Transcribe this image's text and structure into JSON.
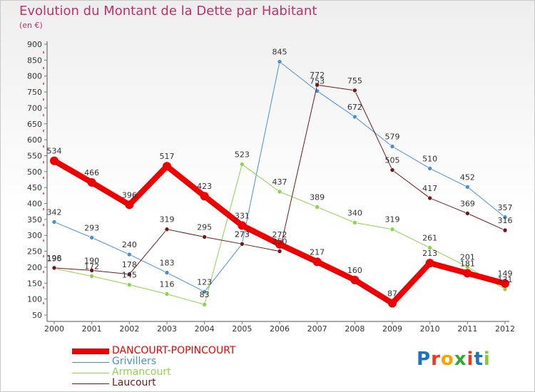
{
  "title": "Evolution du Montant de la Dette par Habitant",
  "unit": "(en €)",
  "logo": {
    "text": "Proxiti",
    "colors": [
      "#1e73be",
      "#e83a1f",
      "#f7a300",
      "#37a537",
      "#e83a1f",
      "#1e73be",
      "#8cc63f"
    ]
  },
  "chart_data": {
    "type": "line",
    "x": [
      "2000",
      "2001",
      "2002",
      "2003",
      "2004",
      "2005",
      "2006",
      "2007",
      "2008",
      "2009",
      "2010",
      "2011",
      "2012"
    ],
    "ylim": [
      50,
      900
    ],
    "yticks": [
      50,
      100,
      150,
      200,
      250,
      300,
      350,
      400,
      450,
      500,
      550,
      600,
      650,
      700,
      750,
      800,
      850,
      900
    ],
    "grid": false,
    "legend_position": "bottom-left",
    "series": [
      {
        "name": "Grivillers",
        "color": "#4a90d0",
        "width": 1,
        "values": [
          342,
          293,
          240,
          183,
          123,
          273,
          845,
          753,
          672,
          579,
          510,
          452,
          357
        ]
      },
      {
        "name": "Armancourt",
        "color": "#8fd14f",
        "width": 1,
        "values": [
          196,
          172,
          145,
          116,
          83,
          523,
          437,
          389,
          340,
          319,
          261,
          201,
          131
        ]
      },
      {
        "name": "Laucourt",
        "color": "#6b1a1a",
        "width": 1,
        "values": [
          198,
          190,
          178,
          319,
          295,
          273,
          250,
          772,
          755,
          505,
          417,
          369,
          316
        ]
      },
      {
        "name": "DANCOURT-POPINCOURT",
        "color": "#ee0000",
        "width": 8,
        "values": [
          534,
          466,
          396,
          517,
          423,
          331,
          272,
          217,
          160,
          87,
          213,
          181,
          149
        ]
      }
    ]
  }
}
